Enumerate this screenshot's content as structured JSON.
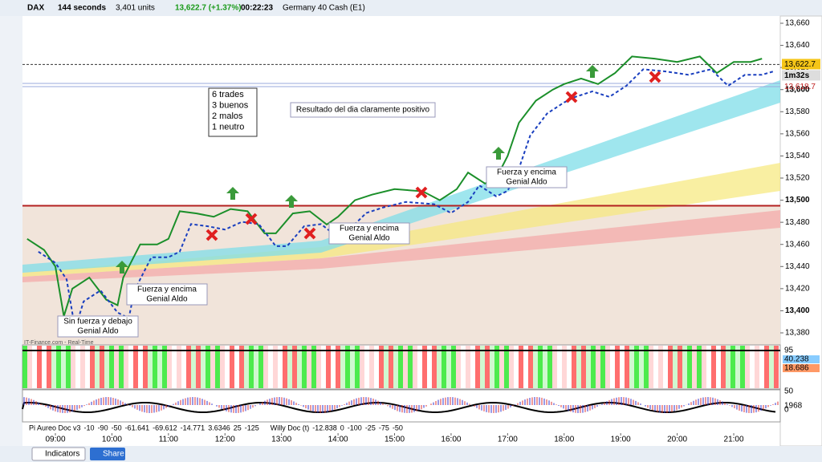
{
  "toolbar": {
    "symbol": "DAX",
    "interval": "144 seconds",
    "units": "3,401 units",
    "price_change": "13,622.7 (+1.37%)",
    "timer": "00:22:23",
    "instrument": "Germany 40 Cash (E1)"
  },
  "price_axis": {
    "ticks": [
      {
        "value": 13660,
        "label": "13,660"
      },
      {
        "value": 13640,
        "label": "13,640"
      },
      {
        "value": 13620,
        "label": "13,620"
      },
      {
        "value": 13600,
        "label": "13,600"
      },
      {
        "value": 13580,
        "label": "13,580"
      },
      {
        "value": 13560,
        "label": "13,560"
      },
      {
        "value": 13540,
        "label": "13,540"
      },
      {
        "value": 13520,
        "label": "13,520"
      },
      {
        "value": 13500,
        "label": "13,500"
      },
      {
        "value": 13480,
        "label": "13,480"
      },
      {
        "value": 13460,
        "label": "13,460"
      },
      {
        "value": 13440,
        "label": "13,440"
      },
      {
        "value": 13420,
        "label": "13,420"
      },
      {
        "value": 13400,
        "label": "13,400"
      },
      {
        "value": 13380,
        "label": "13,380"
      }
    ],
    "last_price": {
      "value": 13622.7,
      "label": "13,622.7"
    },
    "countdown": "1m32s",
    "bid": {
      "value": 13618.7,
      "label": "13,618.7"
    },
    "level": 13495
  },
  "time_axis": {
    "ticks": [
      {
        "value": 9,
        "label": "09:00"
      },
      {
        "value": 10,
        "label": "10:00"
      },
      {
        "value": 11,
        "label": "11:00"
      },
      {
        "value": 12,
        "label": "12:00"
      },
      {
        "value": 13,
        "label": "13:00"
      },
      {
        "value": 14,
        "label": "14:00"
      },
      {
        "value": 15,
        "label": "15:00"
      },
      {
        "value": 16,
        "label": "16:00"
      },
      {
        "value": 17,
        "label": "17:00"
      },
      {
        "value": 18,
        "label": "18:00"
      },
      {
        "value": 19,
        "label": "19:00"
      },
      {
        "value": 20,
        "label": "20:00"
      },
      {
        "value": 21,
        "label": "21:00"
      }
    ]
  },
  "price_line": {
    "hours": [
      8.5,
      8.8,
      9.0,
      9.15,
      9.3,
      9.6,
      9.9,
      10.1,
      10.2,
      10.5,
      10.8,
      11.0,
      11.2,
      11.5,
      11.8,
      12.1,
      12.4,
      12.7,
      12.9,
      13.2,
      13.5,
      13.8,
      14.0,
      14.3,
      14.6,
      15.0,
      15.5,
      15.8,
      16.1,
      16.3,
      16.6,
      16.8,
      17.0,
      17.2,
      17.5,
      17.8,
      18.0,
      18.3,
      18.6,
      18.9,
      19.2,
      19.6,
      20.0,
      20.4,
      20.7,
      21.0,
      21.3,
      21.5
    ],
    "values": [
      13465,
      13455,
      13440,
      13395,
      13420,
      13430,
      13410,
      13405,
      13430,
      13460,
      13460,
      13465,
      13490,
      13488,
      13485,
      13492,
      13490,
      13470,
      13470,
      13488,
      13490,
      13478,
      13485,
      13500,
      13505,
      13510,
      13508,
      13500,
      13510,
      13525,
      13515,
      13520,
      13540,
      13570,
      13590,
      13600,
      13605,
      13610,
      13605,
      13615,
      13630,
      13628,
      13625,
      13630,
      13615,
      13625,
      13625,
      13628
    ]
  },
  "annotations": {
    "summary": [
      "6 trades",
      "3 buenos",
      "2 malos",
      "1 neutro"
    ],
    "result": "Resultado del dia claramente positivo",
    "notes": [
      [
        "Fuerza y encima",
        "Genial Aldo"
      ],
      [
        "Fuerza y encima",
        "Genial Aldo"
      ],
      [
        "Fuerza y encima",
        "Genial Aldo"
      ],
      [
        "Sin fuerza y debajo",
        "Genial Aldo"
      ]
    ]
  },
  "watermark": "IT-Finance.com - Real-Time",
  "panel1": {
    "labels": [
      "95",
      "40.238",
      "18.686"
    ]
  },
  "panel2": {
    "labels": [
      "50",
      "0",
      "1968"
    ]
  },
  "legend": {
    "pi": [
      "Pi Aureo Doc v3",
      "-10",
      "-90",
      "-50",
      "-61.641",
      "-69.612",
      "-14.771",
      "3.6346",
      "25",
      "-125"
    ],
    "willy": [
      "Willy Doc (t)",
      "-12.838",
      "0",
      "-100",
      "-25",
      "-75",
      "-50"
    ]
  },
  "bottom_bar": {
    "indicators": "Indicators",
    "share": "Share"
  }
}
